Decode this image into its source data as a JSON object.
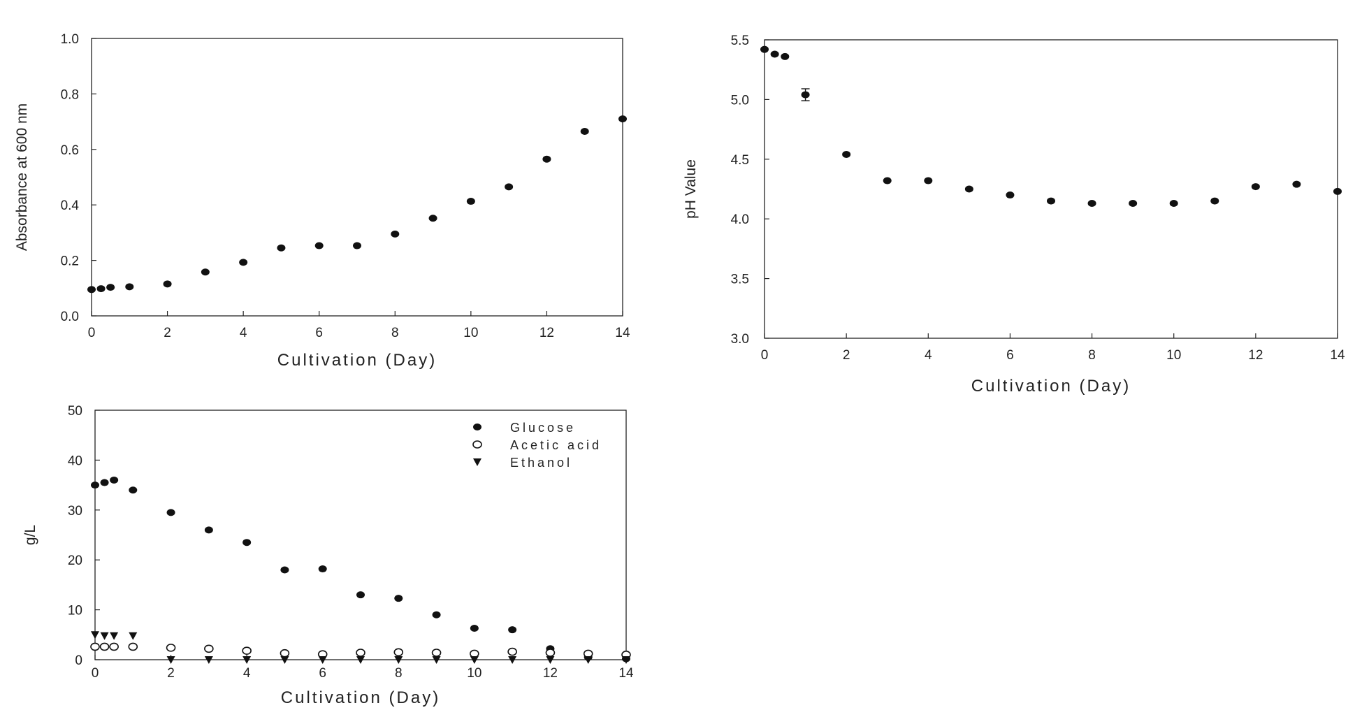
{
  "chart_data": [
    {
      "type": "scatter",
      "id": "absorbance",
      "title": "",
      "xlabel": "Cultivation (Day)",
      "ylabel": "Absorbance at 600 nm",
      "xlim": [
        0,
        14
      ],
      "ylim": [
        0,
        1.0
      ],
      "xticks": [
        "0",
        "2",
        "4",
        "6",
        "8",
        "10",
        "12",
        "14"
      ],
      "yticks": [
        "0.0",
        "0.2",
        "0.4",
        "0.6",
        "0.8",
        "1.0"
      ],
      "series": [
        {
          "name": "Absorbance",
          "marker": "filled-circle",
          "x": [
            0,
            0.25,
            0.5,
            1,
            2,
            3,
            4,
            5,
            6,
            7,
            8,
            9,
            10,
            11,
            12,
            13,
            14
          ],
          "y": [
            0.095,
            0.098,
            0.103,
            0.105,
            0.115,
            0.158,
            0.193,
            0.245,
            0.253,
            0.253,
            0.295,
            0.352,
            0.413,
            0.465,
            0.565,
            0.665,
            0.71
          ]
        }
      ]
    },
    {
      "type": "scatter",
      "id": "ph",
      "title": "",
      "xlabel": "Cultivation (Day)",
      "ylabel": "pH Value",
      "xlim": [
        0,
        14
      ],
      "ylim": [
        3.0,
        5.5
      ],
      "xticks": [
        "0",
        "2",
        "4",
        "6",
        "8",
        "10",
        "12",
        "14"
      ],
      "yticks": [
        "3.0",
        "3.5",
        "4.0",
        "4.5",
        "5.0",
        "5.5"
      ],
      "series": [
        {
          "name": "pH",
          "marker": "filled-circle",
          "x": [
            0,
            0.25,
            0.5,
            1,
            2,
            3,
            4,
            5,
            6,
            7,
            8,
            9,
            10,
            11,
            12,
            13,
            14
          ],
          "y": [
            5.42,
            5.38,
            5.36,
            5.04,
            4.54,
            4.32,
            4.32,
            4.25,
            4.2,
            4.15,
            4.13,
            4.13,
            4.13,
            4.15,
            4.27,
            4.29,
            4.23
          ],
          "error": [
            0,
            0,
            0,
            0.05,
            0,
            0,
            0,
            0,
            0,
            0,
            0,
            0,
            0,
            0,
            0,
            0,
            0
          ]
        }
      ]
    },
    {
      "type": "scatter",
      "id": "metabolites",
      "title": "",
      "xlabel": "Cultivation (Day)",
      "ylabel": "g/L",
      "xlim": [
        0,
        14
      ],
      "ylim": [
        0,
        50
      ],
      "xticks": [
        "0",
        "2",
        "4",
        "6",
        "8",
        "10",
        "12",
        "14"
      ],
      "yticks": [
        "0",
        "10",
        "20",
        "30",
        "40",
        "50"
      ],
      "legend": "top-right",
      "series": [
        {
          "name": "Glucose",
          "marker": "filled-circle",
          "x": [
            0,
            0.25,
            0.5,
            1,
            2,
            3,
            4,
            5,
            6,
            7,
            8,
            9,
            10,
            11,
            12,
            13,
            14
          ],
          "y": [
            35,
            35.5,
            36,
            34,
            29.5,
            26,
            23.5,
            18,
            18.2,
            13,
            12.3,
            9,
            6.3,
            6,
            2.2,
            0.5,
            0.2
          ]
        },
        {
          "name": "Acetic acid",
          "marker": "open-circle",
          "x": [
            0,
            0.25,
            0.5,
            1,
            2,
            3,
            4,
            5,
            6,
            7,
            8,
            9,
            10,
            11,
            12,
            13,
            14
          ],
          "y": [
            2.6,
            2.6,
            2.6,
            2.6,
            2.4,
            2.2,
            1.8,
            1.3,
            1.1,
            1.4,
            1.5,
            1.4,
            1.2,
            1.6,
            1.4,
            1.2,
            1.0
          ]
        },
        {
          "name": "Ethanol",
          "marker": "filled-triangle-down",
          "x": [
            0,
            0.25,
            0.5,
            1,
            2,
            3,
            4,
            5,
            6,
            7,
            8,
            9,
            10,
            11,
            12,
            13,
            14
          ],
          "y": [
            5.0,
            4.8,
            4.8,
            4.8,
            0,
            0,
            0,
            0,
            0,
            0,
            0,
            0,
            0,
            0,
            0,
            0,
            0
          ]
        }
      ]
    }
  ]
}
